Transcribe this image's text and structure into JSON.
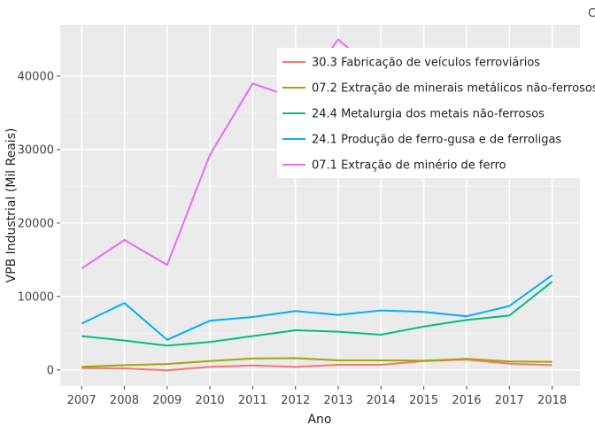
{
  "chart_data": {
    "type": "line",
    "title": "",
    "xlabel": "Ano",
    "ylabel": "VPB Industrial (Mil Reais)",
    "x": [
      2007,
      2008,
      2009,
      2010,
      2011,
      2012,
      2013,
      2014,
      2015,
      2016,
      2017,
      2018
    ],
    "xlim": [
      2006.5,
      2018.65
    ],
    "ylim": [
      -2200,
      47000
    ],
    "yticks": [
      0,
      10000,
      20000,
      30000,
      40000
    ],
    "ytick_labels": [
      "0",
      "10000",
      "20000",
      "30000",
      "40000"
    ],
    "grid": true,
    "legend_position": "top-right",
    "colors": {
      "panel": "#ebebeb",
      "grid": "#ffffff"
    },
    "corner_text": "C",
    "series": [
      {
        "name": "30.3 Fabricação de veículos ferroviários",
        "color": "#f8766d",
        "values": [
          250,
          200,
          -60,
          400,
          600,
          400,
          700,
          700,
          1200,
          1400,
          850,
          650
        ]
      },
      {
        "name": "07.2 Extração de minerais metálicos não-ferrosos",
        "color": "#a3a500",
        "values": [
          400,
          650,
          800,
          1200,
          1550,
          1600,
          1300,
          1300,
          1250,
          1500,
          1150,
          1100
        ]
      },
      {
        "name": "24.4 Metalurgia dos metais não-ferrosos",
        "color": "#00bf7d",
        "values": [
          4600,
          4000,
          3300,
          3800,
          4600,
          5400,
          5200,
          4800,
          5900,
          6800,
          7400,
          12000
        ]
      },
      {
        "name": "24.1 Produção de ferro-gusa e de ferroligas",
        "color": "#00b0f6",
        "values": [
          6300,
          9100,
          4100,
          6700,
          7200,
          8000,
          7500,
          8100,
          7900,
          7300,
          8700,
          12900
        ]
      },
      {
        "name": "07.1 Extração de minério de ferro",
        "color": "#e76bf3",
        "values": [
          13800,
          17700,
          14300,
          29300,
          39000,
          37000,
          45000,
          40000,
          40000,
          40000,
          40000,
          40000
        ]
      }
    ]
  }
}
